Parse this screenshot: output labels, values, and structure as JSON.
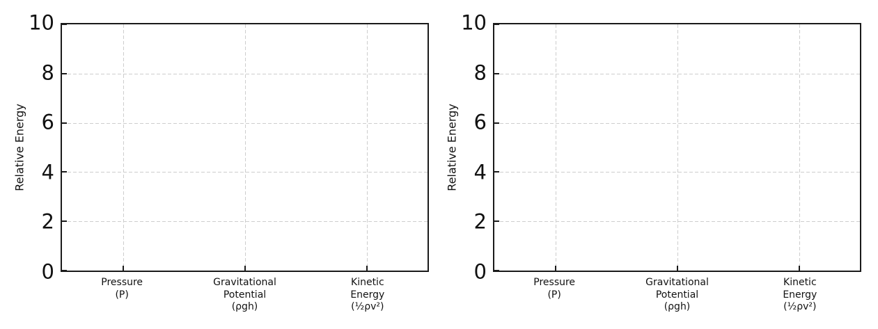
{
  "figure": {
    "background": "#ffffff",
    "title": "",
    "spine_color": "#1a1a1a",
    "grid_color": "#cdcdcd",
    "text_color": "#111111"
  },
  "chart_data": [
    {
      "type": "bar",
      "title": "",
      "xlabel": "",
      "ylabel": "Relative Energy",
      "ylim": [
        0,
        10
      ],
      "yticks": [
        0,
        2,
        4,
        6,
        8,
        10
      ],
      "categories": [
        "Pressure\n(P)",
        "Gravitational\nPotential\n(ρgh)",
        "Kinetic\nEnergy\n(½ρv²)"
      ],
      "values": [
        0,
        0,
        0
      ],
      "grid": {
        "show": true,
        "axes": "both",
        "style": "dashed",
        "color": "#cdcdcd"
      },
      "tick_direction": "in",
      "legend": "none"
    },
    {
      "type": "bar",
      "title": "",
      "xlabel": "",
      "ylabel": "Relative Energy",
      "ylim": [
        0,
        10
      ],
      "yticks": [
        0,
        2,
        4,
        6,
        8,
        10
      ],
      "categories": [
        "Pressure\n(P)",
        "Gravitational\nPotential\n(ρgh)",
        "Kinetic\nEnergy\n(½ρv²)"
      ],
      "values": [
        0,
        0,
        0
      ],
      "grid": {
        "show": true,
        "axes": "both",
        "style": "dashed",
        "color": "#cdcdcd"
      },
      "tick_direction": "in",
      "legend": "none"
    }
  ]
}
